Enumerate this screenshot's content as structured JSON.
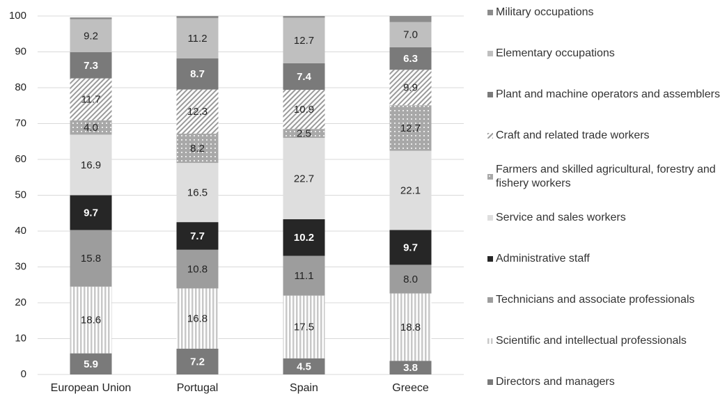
{
  "chart_data": {
    "type": "stacked-bar",
    "categories": [
      "European Union",
      "Portugal",
      "Spain",
      "Greece"
    ],
    "ylim": [
      0,
      100
    ],
    "yticks": [
      0,
      10,
      20,
      30,
      40,
      50,
      60,
      70,
      80,
      90,
      100
    ],
    "grid": true,
    "legend": "right",
    "series": [
      {
        "name": "Directors and managers",
        "color": "#7a7a7a",
        "pattern": "solid",
        "values": [
          5.9,
          7.2,
          4.5,
          3.8
        ],
        "value_labels": [
          "5.9",
          "7.2",
          "4.5",
          "3.8"
        ]
      },
      {
        "name": "Scientific and intellectual professionals",
        "color": "#c8c8c8",
        "pattern": "vertical-stripes",
        "values": [
          18.6,
          16.8,
          17.5,
          18.8
        ],
        "value_labels": [
          "18.6",
          "16.8",
          "17.5",
          "18.8"
        ]
      },
      {
        "name": "Technicians and associate professionals",
        "color": "#9d9d9d",
        "pattern": "solid",
        "values": [
          15.8,
          10.8,
          11.1,
          8.0
        ],
        "value_labels": [
          "15.8",
          "10.8",
          "11.1",
          "8.0"
        ]
      },
      {
        "name": "Administrative staff",
        "color": "#262626",
        "pattern": "solid",
        "values": [
          9.7,
          7.7,
          10.2,
          9.7
        ],
        "value_labels": [
          "9.7",
          "7.7",
          "10.2",
          "9.7"
        ]
      },
      {
        "name": "Service and sales workers",
        "color": "#dedede",
        "pattern": "solid",
        "values": [
          16.9,
          16.5,
          22.7,
          22.1
        ],
        "value_labels": [
          "16.9",
          "16.5",
          "22.7",
          "22.1"
        ]
      },
      {
        "name": "Farmers and skilled agricultural, forestry and fishery workers",
        "color": "#a8a8a8",
        "pattern": "dots",
        "values": [
          4.0,
          8.2,
          2.5,
          12.7
        ],
        "value_labels": [
          "4.0",
          "8.2",
          "2.5",
          "12.7"
        ]
      },
      {
        "name": "Craft and related trade workers",
        "color": "#9a9a9a",
        "pattern": "diagonal-hatch",
        "values": [
          11.7,
          12.3,
          10.9,
          9.9
        ],
        "value_labels": [
          "11.7",
          "12.3",
          "10.9",
          "9.9"
        ]
      },
      {
        "name": "Plant and machine operators and assemblers",
        "color": "#7a7a7a",
        "pattern": "solid",
        "values": [
          7.3,
          8.7,
          7.4,
          6.3
        ],
        "value_labels": [
          "7.3",
          "8.7",
          "7.4",
          "6.3"
        ]
      },
      {
        "name": "Elementary occupations",
        "color": "#bfbfbf",
        "pattern": "solid",
        "values": [
          9.2,
          11.2,
          12.7,
          7.0
        ],
        "value_labels": [
          "9.2",
          "11.2",
          "12.7",
          "7.0"
        ]
      },
      {
        "name": "Military occupations",
        "color": "#8c8c8c",
        "pattern": "solid",
        "values": [
          0.5,
          0.6,
          0.5,
          1.7
        ]
      }
    ]
  }
}
